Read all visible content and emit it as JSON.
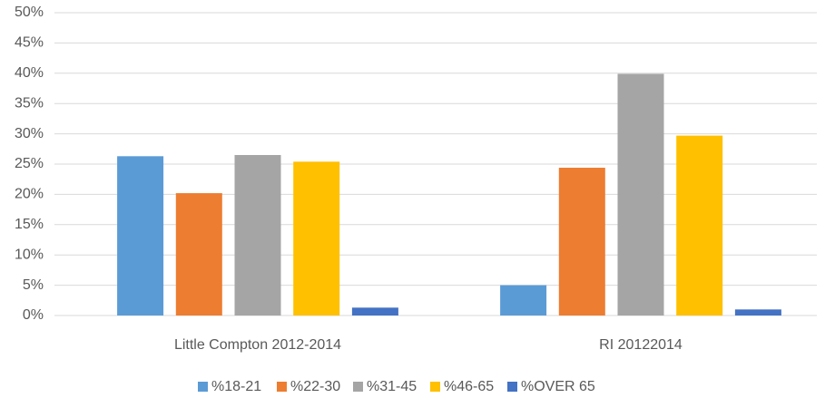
{
  "chart_data": {
    "type": "bar",
    "categories": [
      "Little Compton 2012-2014",
      "RI 20122014"
    ],
    "series": [
      {
        "name": "%18-21",
        "color": "#5b9bd5",
        "values": [
          26.3,
          5.0
        ]
      },
      {
        "name": "%22-30",
        "color": "#ed7d31",
        "values": [
          20.2,
          24.4
        ]
      },
      {
        "name": "%31-45",
        "color": "#a5a5a5",
        "values": [
          26.5,
          39.9
        ]
      },
      {
        "name": "%46-65",
        "color": "#ffc000",
        "values": [
          25.4,
          29.7
        ]
      },
      {
        "name": "%OVER 65",
        "color": "#4472c4",
        "values": [
          1.3,
          1.0
        ]
      }
    ],
    "ylim": [
      0,
      50
    ],
    "yticks": [
      {
        "value": 0,
        "label": "0%"
      },
      {
        "value": 5,
        "label": "5%"
      },
      {
        "value": 10,
        "label": "10%"
      },
      {
        "value": 15,
        "label": "15%"
      },
      {
        "value": 20,
        "label": "20%"
      },
      {
        "value": 25,
        "label": "25%"
      },
      {
        "value": 30,
        "label": "30%"
      },
      {
        "value": 35,
        "label": "35%"
      },
      {
        "value": 40,
        "label": "40%"
      },
      {
        "value": 45,
        "label": "45%"
      },
      {
        "value": 50,
        "label": "50%"
      }
    ],
    "grid": true,
    "legend": "bottom"
  }
}
